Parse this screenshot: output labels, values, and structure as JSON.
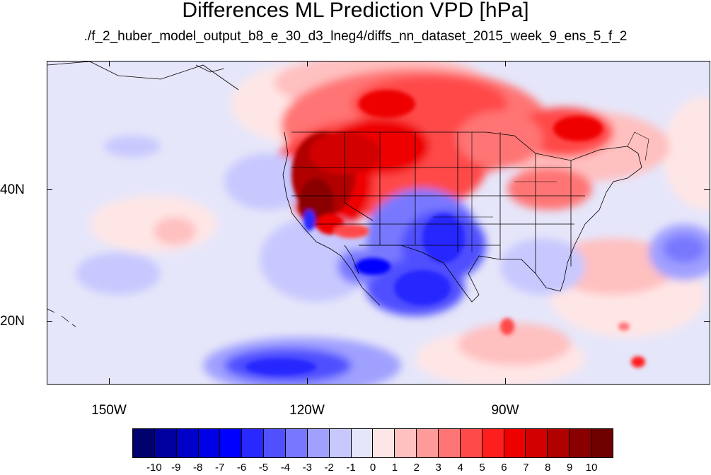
{
  "title": "Differences ML Prediction VPD [hPa]",
  "subtitle": "./f_2_huber_model_output_b8_e_30_d3_lneg4/diffs_nn_dataset_2015_week_9_ens_5_f_2",
  "axes": {
    "lat_labels": [
      "40N",
      "20N"
    ],
    "lon_labels": [
      "150W",
      "120W",
      "90W"
    ]
  },
  "colorbar": {
    "labels": [
      "-10",
      "-9",
      "-8",
      "-7",
      "-6",
      "-5",
      "-4",
      "-3",
      "-2",
      "-1",
      "0",
      "1",
      "2",
      "3",
      "4",
      "5",
      "6",
      "7",
      "8",
      "9",
      "10"
    ],
    "colors": [
      "#00006e",
      "#0000a0",
      "#0000c8",
      "#0000e6",
      "#0000ff",
      "#2828ff",
      "#5050ff",
      "#7878ff",
      "#a0a0ff",
      "#c8c8ff",
      "#e6e6fa",
      "#ffe6e6",
      "#ffc0c0",
      "#ff9a9a",
      "#ff7474",
      "#ff4a4a",
      "#ff1e1e",
      "#ee0000",
      "#d20000",
      "#b00000",
      "#8a0000",
      "#6e0000"
    ]
  },
  "chart_data": {
    "type": "heatmap",
    "variable": "VPD difference",
    "units": "hPa",
    "color_scale_levels": [
      -10,
      -9,
      -8,
      -7,
      -6,
      -5,
      -4,
      -3,
      -2,
      -1,
      0,
      1,
      2,
      3,
      4,
      5,
      6,
      7,
      8,
      9,
      10
    ],
    "x_axis": {
      "ticks": [
        "150W",
        "120W",
        "90W"
      ]
    },
    "y_axis": {
      "ticks": [
        "40N",
        "20N"
      ]
    }
  }
}
